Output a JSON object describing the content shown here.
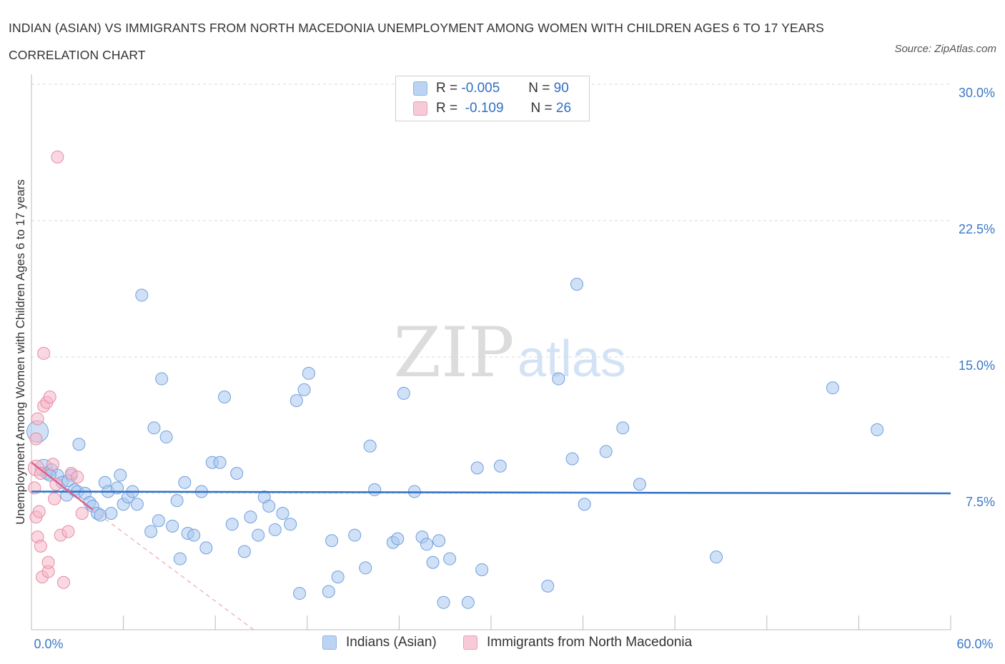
{
  "title": "INDIAN (ASIAN) VS IMMIGRANTS FROM NORTH MACEDONIA UNEMPLOYMENT AMONG WOMEN WITH CHILDREN AGES 6 TO 17 YEARS CORRELATION CHART",
  "source": "Source: ZipAtlas.com",
  "watermark": {
    "zip": "ZIP",
    "atlas": "atlas"
  },
  "legend": {
    "series": [
      {
        "label": "Indians (Asian)",
        "r_label": "R =",
        "r_value": "-0.005",
        "n_label": "N =",
        "n_value": "90",
        "color": "#a9c8f0"
      },
      {
        "label": "Immigrants from North Macedonia",
        "r_label": "R =",
        "r_value": "-0.109",
        "n_label": "N =",
        "n_value": "26",
        "color": "#f5b8c9"
      }
    ]
  },
  "chart_data": {
    "type": "scatter",
    "title": "INDIAN (ASIAN) VS IMMIGRANTS FROM NORTH MACEDONIA UNEMPLOYMENT AMONG WOMEN WITH CHILDREN AGES 6 TO 17 YEARS CORRELATION CHART",
    "xlabel": "",
    "ylabel": "Unemployment Among Women with Children Ages 6 to 17 years",
    "xlim": [
      0,
      60
    ],
    "ylim": [
      0,
      30
    ],
    "x_tick_labels": [
      "0.0%",
      "60.0%"
    ],
    "y_ticks": [
      7.5,
      15.0,
      22.5,
      30.0
    ],
    "y_tick_labels": [
      "7.5%",
      "15.0%",
      "22.5%",
      "30.0%"
    ],
    "grid": true,
    "legend_position": "top-center",
    "series": [
      {
        "name": "Indians (Asian)",
        "color": "#a9c8f0",
        "stroke": "#6f9fdc",
        "trend": {
          "x": [
            0,
            60
          ],
          "y": [
            7.6,
            7.5
          ],
          "color": "#2f6fc4"
        },
        "points": [
          [
            0.4,
            10.9
          ],
          [
            0.8,
            8.9
          ],
          [
            1.0,
            8.6
          ],
          [
            1.3,
            8.8
          ],
          [
            1.7,
            8.5
          ],
          [
            2.0,
            8.1
          ],
          [
            2.3,
            7.4
          ],
          [
            2.6,
            8.5
          ],
          [
            2.8,
            7.7
          ],
          [
            3.0,
            7.6
          ],
          [
            3.1,
            10.2
          ],
          [
            3.5,
            7.5
          ],
          [
            3.8,
            7.0
          ],
          [
            4.0,
            6.8
          ],
          [
            4.3,
            6.4
          ],
          [
            4.5,
            6.3
          ],
          [
            4.8,
            8.1
          ],
          [
            5.0,
            7.6
          ],
          [
            5.2,
            6.4
          ],
          [
            5.6,
            7.8
          ],
          [
            5.8,
            8.5
          ],
          [
            6.0,
            6.9
          ],
          [
            6.3,
            7.3
          ],
          [
            6.6,
            7.6
          ],
          [
            6.9,
            6.9
          ],
          [
            7.2,
            18.4
          ],
          [
            7.8,
            5.4
          ],
          [
            8.0,
            11.1
          ],
          [
            8.3,
            6.0
          ],
          [
            8.5,
            13.8
          ],
          [
            8.8,
            10.6
          ],
          [
            9.2,
            5.7
          ],
          [
            9.5,
            7.1
          ],
          [
            9.7,
            3.9
          ],
          [
            10.0,
            8.1
          ],
          [
            10.2,
            5.3
          ],
          [
            10.6,
            5.2
          ],
          [
            11.1,
            7.6
          ],
          [
            11.4,
            4.5
          ],
          [
            11.8,
            9.2
          ],
          [
            12.3,
            9.2
          ],
          [
            12.6,
            12.8
          ],
          [
            13.1,
            5.8
          ],
          [
            13.4,
            8.6
          ],
          [
            13.9,
            4.3
          ],
          [
            14.3,
            6.2
          ],
          [
            14.8,
            5.2
          ],
          [
            15.2,
            7.3
          ],
          [
            15.5,
            6.8
          ],
          [
            15.9,
            5.5
          ],
          [
            16.4,
            6.4
          ],
          [
            16.9,
            5.8
          ],
          [
            17.3,
            12.6
          ],
          [
            17.5,
            2.0
          ],
          [
            17.8,
            13.2
          ],
          [
            18.1,
            14.1
          ],
          [
            19.4,
            2.1
          ],
          [
            19.6,
            4.9
          ],
          [
            20.0,
            2.9
          ],
          [
            21.1,
            5.2
          ],
          [
            21.8,
            3.4
          ],
          [
            22.1,
            10.1
          ],
          [
            22.4,
            7.7
          ],
          [
            23.6,
            4.8
          ],
          [
            23.9,
            5.0
          ],
          [
            24.3,
            13.0
          ],
          [
            25.0,
            7.6
          ],
          [
            25.5,
            5.1
          ],
          [
            25.8,
            4.7
          ],
          [
            26.2,
            3.7
          ],
          [
            26.6,
            4.9
          ],
          [
            26.9,
            1.5
          ],
          [
            27.3,
            3.9
          ],
          [
            28.5,
            1.5
          ],
          [
            29.1,
            8.9
          ],
          [
            29.4,
            3.3
          ],
          [
            30.6,
            9.0
          ],
          [
            33.7,
            2.4
          ],
          [
            34.4,
            13.8
          ],
          [
            35.3,
            9.4
          ],
          [
            35.6,
            19.0
          ],
          [
            36.1,
            6.9
          ],
          [
            37.5,
            9.8
          ],
          [
            38.6,
            11.1
          ],
          [
            39.7,
            8.0
          ],
          [
            44.7,
            4.0
          ],
          [
            52.3,
            13.3
          ],
          [
            55.2,
            11.0
          ],
          [
            1.2,
            8.5
          ],
          [
            2.4,
            8.2
          ]
        ]
      },
      {
        "name": "Immigrants from North Macedonia",
        "color": "#f5b8c9",
        "stroke": "#e78aa5",
        "trend": {
          "x": [
            0.0,
            4.0
          ],
          "y": [
            9.2,
            6.6
          ],
          "color": "#e0608a"
        },
        "trend_extension": {
          "x": [
            4.0,
            14.5
          ],
          "y": [
            6.6,
            0.0
          ],
          "color": "#eaa6ba",
          "dashed": true
        },
        "points": [
          [
            0.3,
            8.9
          ],
          [
            0.3,
            10.5
          ],
          [
            0.3,
            6.2
          ],
          [
            0.4,
            5.1
          ],
          [
            0.4,
            11.6
          ],
          [
            0.5,
            6.5
          ],
          [
            0.6,
            4.6
          ],
          [
            0.6,
            8.6
          ],
          [
            0.7,
            2.9
          ],
          [
            0.8,
            12.3
          ],
          [
            0.8,
            15.2
          ],
          [
            1.0,
            12.5
          ],
          [
            1.1,
            3.2
          ],
          [
            1.1,
            3.7
          ],
          [
            1.2,
            12.8
          ],
          [
            1.4,
            9.1
          ],
          [
            1.5,
            7.2
          ],
          [
            1.6,
            8.0
          ],
          [
            1.7,
            26.0
          ],
          [
            1.9,
            5.2
          ],
          [
            2.1,
            2.6
          ],
          [
            2.4,
            5.4
          ],
          [
            2.6,
            8.6
          ],
          [
            3.0,
            8.4
          ],
          [
            3.3,
            6.4
          ],
          [
            0.2,
            7.8
          ]
        ]
      }
    ]
  }
}
